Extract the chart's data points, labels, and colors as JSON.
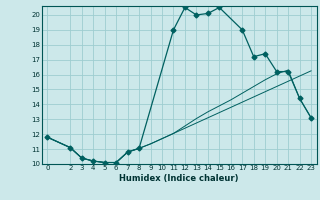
{
  "title": "",
  "xlabel": "Humidex (Indice chaleur)",
  "bg_color": "#cce8ea",
  "grid_color": "#9ecdd0",
  "line_color": "#006060",
  "xlim": [
    -0.5,
    23.5
  ],
  "ylim": [
    10,
    20.6
  ],
  "xticks": [
    0,
    2,
    3,
    4,
    5,
    6,
    7,
    8,
    9,
    10,
    11,
    12,
    13,
    14,
    15,
    16,
    17,
    18,
    19,
    20,
    21,
    22,
    23
  ],
  "yticks": [
    10,
    11,
    12,
    13,
    14,
    15,
    16,
    17,
    18,
    19,
    20
  ],
  "curve1_x": [
    0,
    2,
    3,
    4,
    5,
    6,
    7,
    8,
    11,
    12,
    13,
    14,
    15,
    17,
    18,
    19,
    20,
    21,
    22,
    23
  ],
  "curve1_y": [
    11.8,
    11.1,
    10.4,
    10.2,
    10.1,
    10.1,
    10.8,
    11.05,
    19.0,
    20.5,
    20.0,
    20.1,
    20.5,
    19.0,
    17.2,
    17.4,
    16.2,
    16.2,
    14.4,
    13.1
  ],
  "curve2_x": [
    0,
    2,
    3,
    4,
    5,
    6,
    7,
    8,
    9,
    10,
    11,
    12,
    13,
    14,
    15,
    16,
    17,
    18,
    19,
    20,
    21,
    22,
    23
  ],
  "curve2_y": [
    11.8,
    11.1,
    10.4,
    10.2,
    10.1,
    10.1,
    10.8,
    11.05,
    11.35,
    11.7,
    12.05,
    12.4,
    12.75,
    13.1,
    13.45,
    13.8,
    14.15,
    14.5,
    14.85,
    15.2,
    15.55,
    15.9,
    16.25
  ],
  "curve3_x": [
    0,
    2,
    3,
    4,
    5,
    6,
    7,
    8,
    9,
    10,
    11,
    12,
    13,
    14,
    15,
    16,
    17,
    18,
    19,
    20,
    21,
    22,
    23
  ],
  "curve3_y": [
    11.8,
    11.1,
    10.4,
    10.2,
    10.1,
    10.1,
    10.8,
    11.05,
    11.35,
    11.7,
    12.05,
    12.55,
    13.05,
    13.5,
    13.9,
    14.3,
    14.75,
    15.2,
    15.65,
    16.05,
    16.3,
    14.4,
    13.1
  ],
  "marker_size": 2.5,
  "tick_fontsize": 5,
  "xlabel_fontsize": 6
}
